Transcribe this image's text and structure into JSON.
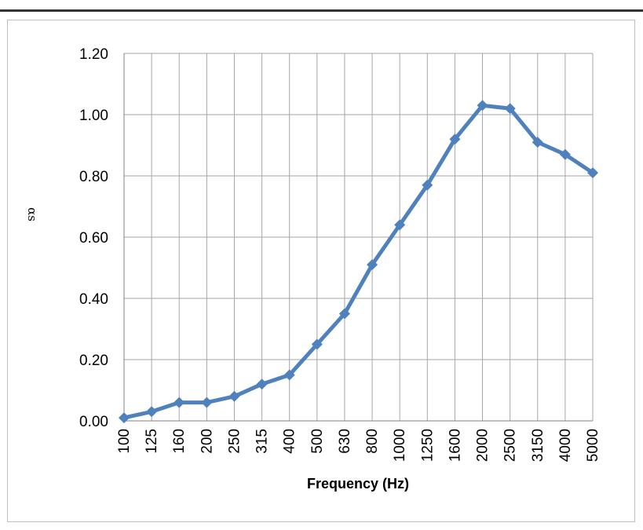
{
  "chart_data": {
    "type": "line",
    "xlabel": "Frequency (Hz)",
    "ylabel": "αs",
    "categories": [
      "100",
      "125",
      "160",
      "200",
      "250",
      "315",
      "400",
      "500",
      "630",
      "800",
      "1000",
      "1250",
      "1600",
      "2000",
      "2500",
      "3150",
      "4000",
      "5000"
    ],
    "series": [
      {
        "values": [
          0.01,
          0.03,
          0.06,
          0.06,
          0.08,
          0.12,
          0.15,
          0.25,
          0.35,
          0.51,
          0.64,
          0.77,
          0.92,
          1.03,
          1.02,
          0.91,
          0.87,
          0.81
        ]
      }
    ],
    "ylim": [
      0,
      1.2
    ],
    "yticks": [
      0,
      0.2,
      0.4,
      0.6,
      0.8,
      1.0,
      1.2
    ],
    "ytick_labels": [
      "0.00",
      "0.20",
      "0.40",
      "0.60",
      "0.80",
      "1.00",
      "1.20"
    ],
    "grid": true,
    "legend": "none",
    "colors": {
      "line": "#4F81BD",
      "grid": "#a6a6a6",
      "frame": "#bfbfbf"
    }
  }
}
